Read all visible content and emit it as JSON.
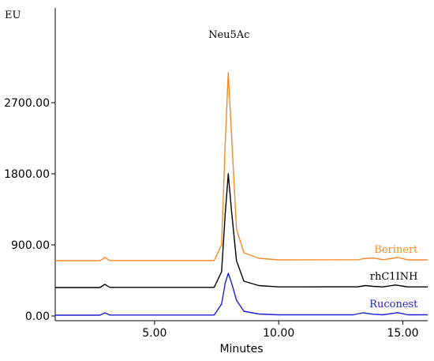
{
  "chart_data": {
    "type": "line",
    "title": "",
    "xlabel": "Minutes",
    "ylabel": "",
    "y_unit": "EU",
    "xlim": [
      1.0,
      16.0
    ],
    "ylim": [
      -60,
      3900
    ],
    "x_ticks": [
      5,
      10,
      15
    ],
    "x_tick_labels": [
      "5.00",
      "10.00",
      "15.00"
    ],
    "y_ticks": [
      0,
      900,
      1800,
      2700
    ],
    "y_tick_labels": [
      "0.00",
      "900.00",
      "1800.00",
      "2700.00"
    ],
    "grid": false,
    "legend": "none",
    "annotations": [
      {
        "text": "Neu5Ac",
        "x": 8.0,
        "y": 3520
      }
    ],
    "series": [
      {
        "name": "Berinert",
        "color": "#f28c28",
        "points": [
          [
            1.0,
            700
          ],
          [
            2.8,
            700
          ],
          [
            3.0,
            740
          ],
          [
            3.2,
            702
          ],
          [
            7.4,
            702
          ],
          [
            7.7,
            900
          ],
          [
            7.85,
            2200
          ],
          [
            7.97,
            3080
          ],
          [
            8.1,
            2300
          ],
          [
            8.3,
            1100
          ],
          [
            8.6,
            800
          ],
          [
            9.2,
            730
          ],
          [
            10.0,
            710
          ],
          [
            13.2,
            712
          ],
          [
            13.4,
            725
          ],
          [
            13.8,
            735
          ],
          [
            14.2,
            712
          ],
          [
            14.8,
            740
          ],
          [
            15.2,
            710
          ],
          [
            16.0,
            710
          ]
        ],
        "label": {
          "x": 15.6,
          "y": 800
        }
      },
      {
        "name": "rhC1INH",
        "color": "#000000",
        "points": [
          [
            1.0,
            360
          ],
          [
            2.8,
            360
          ],
          [
            3.0,
            400
          ],
          [
            3.2,
            362
          ],
          [
            7.4,
            362
          ],
          [
            7.7,
            560
          ],
          [
            7.85,
            1300
          ],
          [
            7.97,
            1800
          ],
          [
            8.1,
            1330
          ],
          [
            8.3,
            700
          ],
          [
            8.6,
            440
          ],
          [
            9.2,
            385
          ],
          [
            10.0,
            368
          ],
          [
            13.2,
            370
          ],
          [
            13.5,
            385
          ],
          [
            13.8,
            375
          ],
          [
            14.2,
            368
          ],
          [
            14.7,
            392
          ],
          [
            15.2,
            368
          ],
          [
            16.0,
            368
          ]
        ],
        "label": {
          "x": 15.6,
          "y": 460
        }
      },
      {
        "name": "Ruconest",
        "color": "#1f1fd6",
        "points": [
          [
            1.0,
            10
          ],
          [
            2.8,
            10
          ],
          [
            3.0,
            40
          ],
          [
            3.2,
            12
          ],
          [
            7.4,
            12
          ],
          [
            7.7,
            150
          ],
          [
            7.85,
            420
          ],
          [
            7.97,
            540
          ],
          [
            8.1,
            420
          ],
          [
            8.3,
            200
          ],
          [
            8.6,
            60
          ],
          [
            9.2,
            25
          ],
          [
            10.0,
            15
          ],
          [
            13.0,
            15
          ],
          [
            13.4,
            40
          ],
          [
            13.8,
            22
          ],
          [
            14.2,
            15
          ],
          [
            14.8,
            42
          ],
          [
            15.2,
            15
          ],
          [
            16.0,
            15
          ]
        ],
        "label": {
          "x": 15.6,
          "y": 110
        }
      }
    ]
  }
}
